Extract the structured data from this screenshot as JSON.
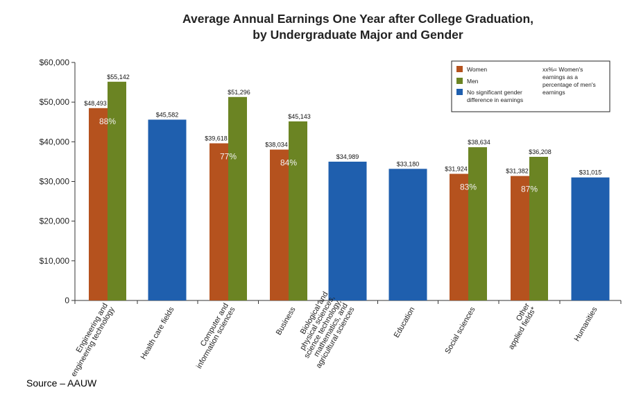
{
  "chart_data": {
    "type": "bar",
    "title_lines": [
      "Average Annual Earnings One Year after College Graduation,",
      "by Undergraduate Major and Gender"
    ],
    "ylim": [
      0,
      60000
    ],
    "yticks": [
      0,
      10000,
      20000,
      30000,
      40000,
      50000,
      60000
    ],
    "ytick_labels": [
      "0",
      "$10,000",
      "$20,000",
      "$30,000",
      "$40,000",
      "$50,000",
      "$60,000"
    ],
    "colors": {
      "women": "#b5521e",
      "men": "#6b8423",
      "no_difference": "#1f5fae"
    },
    "legend": {
      "position": "top-right",
      "items": [
        {
          "key": "women",
          "label": "Women"
        },
        {
          "key": "men",
          "label": "Men"
        },
        {
          "key": "no_difference",
          "label_lines": [
            "No significant gender",
            "difference in earnings"
          ]
        }
      ],
      "note_lines": [
        "xx%= Women's",
        "earnings as a",
        "percentage of men's",
        "earnings"
      ]
    },
    "categories": [
      {
        "label_lines": [
          "Engineering and",
          "engineering technology"
        ],
        "women": 48493,
        "men": 55142,
        "women_label": "$48,493",
        "men_label": "$55,142",
        "pct": "88%"
      },
      {
        "label_lines": [
          "Health care fields"
        ],
        "combined": 45582,
        "combined_label": "$45,582"
      },
      {
        "label_lines": [
          "Computer and",
          "information sciences"
        ],
        "women": 39618,
        "men": 51296,
        "women_label": "$39,618",
        "men_label": "$51,296",
        "pct": "77%"
      },
      {
        "label_lines": [
          "Business"
        ],
        "women": 38034,
        "men": 45143,
        "women_label": "$38,034",
        "men_label": "$45,143",
        "pct": "84%"
      },
      {
        "label_lines": [
          "Biological and",
          "physical sciences,",
          "science technology,",
          "mathematics, and",
          "agricultural sciences"
        ],
        "combined": 34989,
        "combined_label": "$34,989"
      },
      {
        "label_lines": [
          "Education"
        ],
        "combined": 33180,
        "combined_label": "$33,180"
      },
      {
        "label_lines": [
          "Social sciences"
        ],
        "women": 31924,
        "men": 38634,
        "women_label": "$31,924",
        "men_label": "$38,634",
        "pct": "83%"
      },
      {
        "label_lines": [
          "Other",
          "applied fields*"
        ],
        "women": 31382,
        "men": 36208,
        "women_label": "$31,382",
        "men_label": "$36,208",
        "pct": "87%"
      },
      {
        "label_lines": [
          "Humanities"
        ],
        "combined": 31015,
        "combined_label": "$31,015"
      }
    ]
  },
  "source_text": "Source – AAUW"
}
